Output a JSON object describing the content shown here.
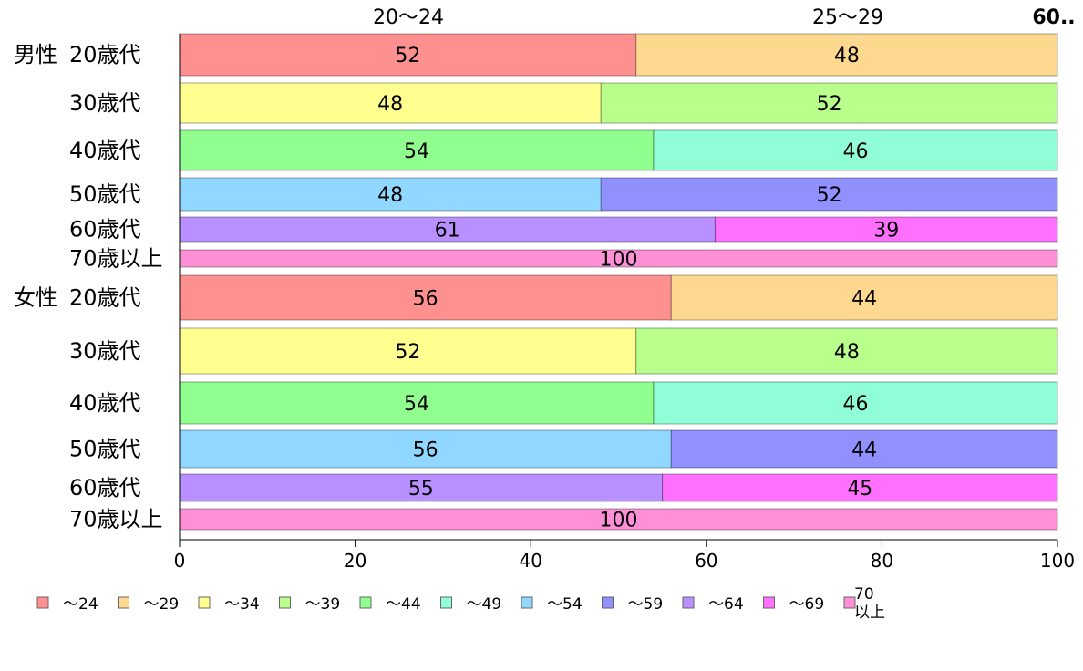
{
  "chart_data": {
    "type": "bar",
    "orientation": "horizontal",
    "stacked": true,
    "xlim": [
      0,
      100
    ],
    "x_ticks": [
      "0",
      "20",
      "40",
      "60",
      "80",
      "100"
    ],
    "top_labels": [
      "20〜24",
      "25〜29"
    ],
    "top_right_label": "60..",
    "groups": [
      {
        "label": "男性",
        "rows": [
          {
            "label": "20歳代",
            "segments": [
              {
                "series": 0,
                "value": 52
              },
              {
                "series": 1,
                "value": 48
              }
            ]
          },
          {
            "label": "30歳代",
            "segments": [
              {
                "series": 2,
                "value": 48
              },
              {
                "series": 3,
                "value": 52
              }
            ]
          },
          {
            "label": "40歳代",
            "segments": [
              {
                "series": 4,
                "value": 54
              },
              {
                "series": 5,
                "value": 46
              }
            ]
          },
          {
            "label": "50歳代",
            "segments": [
              {
                "series": 6,
                "value": 48
              },
              {
                "series": 7,
                "value": 52
              }
            ]
          },
          {
            "label": "60歳代",
            "segments": [
              {
                "series": 8,
                "value": 61
              },
              {
                "series": 9,
                "value": 39
              }
            ]
          },
          {
            "label": "70歳以上",
            "segments": [
              {
                "series": 10,
                "value": 100
              }
            ]
          }
        ]
      },
      {
        "label": "女性",
        "rows": [
          {
            "label": "20歳代",
            "segments": [
              {
                "series": 0,
                "value": 56
              },
              {
                "series": 1,
                "value": 44
              }
            ]
          },
          {
            "label": "30歳代",
            "segments": [
              {
                "series": 2,
                "value": 52
              },
              {
                "series": 3,
                "value": 48
              }
            ]
          },
          {
            "label": "40歳代",
            "segments": [
              {
                "series": 4,
                "value": 54
              },
              {
                "series": 5,
                "value": 46
              }
            ]
          },
          {
            "label": "50歳代",
            "segments": [
              {
                "series": 6,
                "value": 56
              },
              {
                "series": 7,
                "value": 44
              }
            ]
          },
          {
            "label": "60歳代",
            "segments": [
              {
                "series": 8,
                "value": 55
              },
              {
                "series": 9,
                "value": 45
              }
            ]
          },
          {
            "label": "70歳以上",
            "segments": [
              {
                "series": 10,
                "value": 100
              }
            ]
          }
        ]
      }
    ],
    "series": [
      {
        "name": "〜24",
        "color": "#ff9090"
      },
      {
        "name": "〜29",
        "color": "#ffd890"
      },
      {
        "name": "〜34",
        "color": "#ffff90"
      },
      {
        "name": "〜39",
        "color": "#b8ff8c"
      },
      {
        "name": "〜44",
        "color": "#90ff90"
      },
      {
        "name": "〜49",
        "color": "#90ffd8"
      },
      {
        "name": "〜54",
        "color": "#90d8ff"
      },
      {
        "name": "〜59",
        "color": "#9090ff"
      },
      {
        "name": "〜64",
        "color": "#b890ff"
      },
      {
        "name": "〜69",
        "color": "#ff70ff"
      },
      {
        "name": "70\n以上",
        "color": "#ff90d8"
      }
    ],
    "legend_position": "bottom",
    "grid": false
  }
}
